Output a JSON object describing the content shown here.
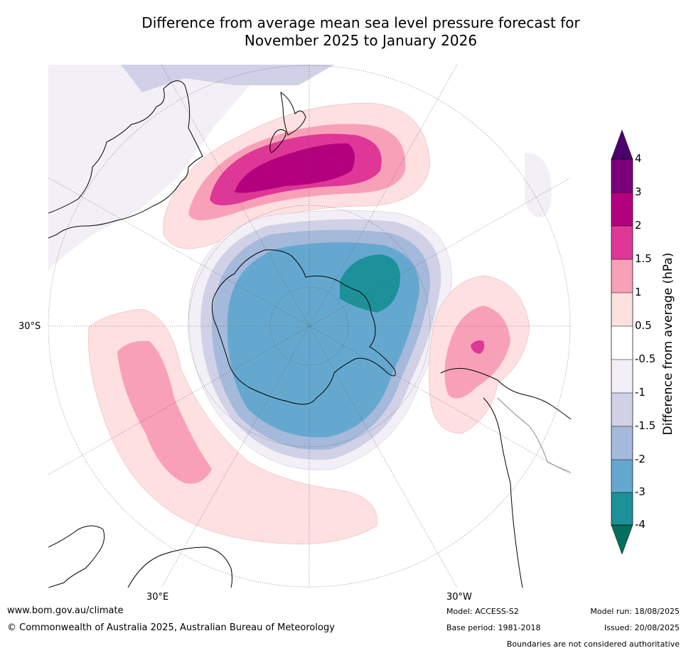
{
  "title": {
    "line1": "Difference from average mean sea level pressure forecast for",
    "line2": "November 2025 to January 2026"
  },
  "map": {
    "projection": "south-polar-stereographic",
    "graticule_labels": {
      "lat": "30°S",
      "lon_east": "30°E",
      "lon_west": "30°W"
    },
    "regions": [
      {
        "name": "tasman-sea-high",
        "anomaly_range": "1 to >3",
        "color": "#b3007f"
      },
      {
        "name": "antarctic-low",
        "anomaly_range": "-1 to -4",
        "color": "#1c9199"
      },
      {
        "name": "south-indian-high",
        "anomaly_range": "0.5 to 1.5",
        "color": "#f9a0b9"
      },
      {
        "name": "south-atlantic-high",
        "anomaly_range": "0.5 to 2",
        "color": "#de3797"
      }
    ]
  },
  "colorbar": {
    "title": "Difference from average (hPa)",
    "tick_labels": [
      "4",
      "3",
      "2",
      "1.5",
      "1",
      "0.5",
      "-0.5",
      "-1",
      "-1.5",
      "-2",
      "-3",
      "-4"
    ],
    "colors": {
      "gt4": "#4b006d",
      "3_4": "#7c007b",
      "2_3": "#b3007f",
      "1.5_2": "#de3797",
      "1_1.5": "#f9a0b9",
      "0.5_1": "#fde0df",
      "neutral": "#ffffff",
      "m1_m0.5": "#f3eff6",
      "m1.5_m1": "#d0d1e6",
      "m2_m1.5": "#a5b9db",
      "m3_m2": "#65a8cf",
      "m4_m3": "#1c9199",
      "lt_m4": "#02705d"
    }
  },
  "footer": {
    "website": "www.bom.gov.au/climate",
    "copyright": "© Commonwealth of Australia 2025, Australian Bureau of Meteorology",
    "model": "Model: ACCESS-S2",
    "base_period": "Base period: 1981-2018",
    "model_run": "Model run: 18/08/2025",
    "issued": "Issued: 20/08/2025",
    "disclaimer": "Boundaries are not considered authoritative"
  }
}
